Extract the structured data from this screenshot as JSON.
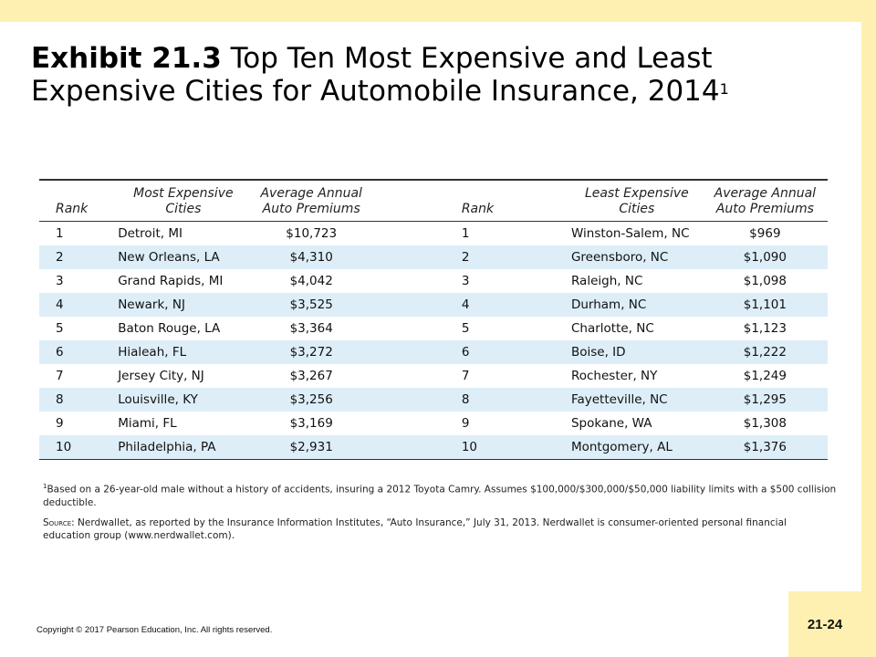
{
  "title": {
    "bold": "Exhibit 21.3",
    "text": " Top Ten Most Expensive and Least Expensive Cities for Automobile Insurance, 2014",
    "sup": "1"
  },
  "table": {
    "headers": {
      "rank": "Rank",
      "most_expensive_line1": "Most Expensive",
      "most_expensive_line2": "Cities",
      "avg_premium_line1": "Average Annual",
      "avg_premium_line2": "Auto Premiums",
      "rank2": "Rank",
      "least_expensive_line1": "Least Expensive",
      "least_expensive_line2": "Cities",
      "avg_premium2_line1": "Average Annual",
      "avg_premium2_line2": "Auto Premiums"
    },
    "rows": [
      {
        "rank": "1",
        "city": "Detroit, MI",
        "premium": "$10,723",
        "rank2": "1",
        "city2": "Winston-Salem, NC",
        "premium2": "$969"
      },
      {
        "rank": "2",
        "city": "New Orleans, LA",
        "premium": "$4,310",
        "rank2": "2",
        "city2": "Greensboro, NC",
        "premium2": "$1,090"
      },
      {
        "rank": "3",
        "city": "Grand Rapids, MI",
        "premium": "$4,042",
        "rank2": "3",
        "city2": "Raleigh, NC",
        "premium2": "$1,098"
      },
      {
        "rank": "4",
        "city": "Newark, NJ",
        "premium": "$3,525",
        "rank2": "4",
        "city2": "Durham, NC",
        "premium2": "$1,101"
      },
      {
        "rank": "5",
        "city": "Baton Rouge, LA",
        "premium": "$3,364",
        "rank2": "5",
        "city2": "Charlotte, NC",
        "premium2": "$1,123"
      },
      {
        "rank": "6",
        "city": "Hialeah, FL",
        "premium": "$3,272",
        "rank2": "6",
        "city2": "Boise, ID",
        "premium2": "$1,222"
      },
      {
        "rank": "7",
        "city": "Jersey City, NJ",
        "premium": "$3,267",
        "rank2": "7",
        "city2": "Rochester, NY",
        "premium2": "$1,249"
      },
      {
        "rank": "8",
        "city": "Louisville, KY",
        "premium": "$3,256",
        "rank2": "8",
        "city2": "Fayetteville, NC",
        "premium2": "$1,295"
      },
      {
        "rank": "9",
        "city": "Miami, FL",
        "premium": "$3,169",
        "rank2": "9",
        "city2": "Spokane, WA",
        "premium2": "$1,308"
      },
      {
        "rank": "10",
        "city": "Philadelphia, PA",
        "premium": "$2,931",
        "rank2": "10",
        "city2": "Montgomery, AL",
        "premium2": "$1,376"
      }
    ]
  },
  "notes": {
    "footnote_mark": "1",
    "footnote": "Based on a 26-year-old male without a history of accidents, insuring a 2012 Toyota Camry. Assumes $100,000/$300,000/$50,000 liability limits with a $500 collision deductible.",
    "source_label": "Source:",
    "source": " Nerdwallet, as reported by the Insurance Information Institutes, “Auto Insurance,” July 31, 2013. Nerdwallet is consumer-oriented personal financial education group (www.nerdwallet.com)."
  },
  "footer": {
    "copyright": "Copyright © 2017 Pearson Education, Inc. All rights reserved.",
    "page_number": "21-24"
  },
  "colors": {
    "frame": "#fdf0b0",
    "row_shade": "#ddeef8"
  }
}
